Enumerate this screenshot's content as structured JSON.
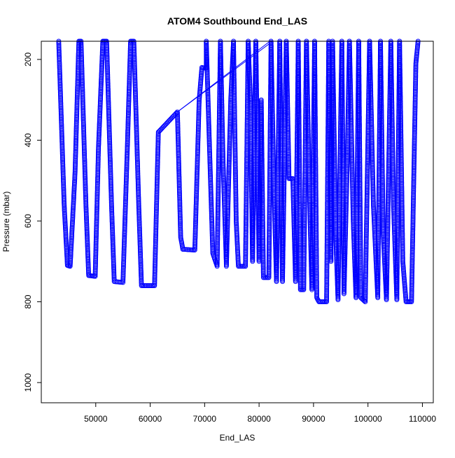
{
  "chart_data": {
    "type": "scatter",
    "title": "ATOM4 Southbound End_LAS",
    "xlabel": "End_LAS",
    "ylabel": "Pressure (mbar)",
    "xlim": [
      40000,
      112000
    ],
    "ylim": [
      1050,
      155
    ],
    "y_reversed": true,
    "grid": false,
    "marker": "open-circle",
    "colors": {
      "points": "#0000ff",
      "axes": "#000000",
      "background": "#ffffff"
    },
    "xticks": [
      50000,
      60000,
      70000,
      80000,
      90000,
      100000,
      110000
    ],
    "xtick_labels": [
      "50000",
      "60000",
      "70000",
      "80000",
      "90000",
      "100000",
      "110000"
    ],
    "yticks": [
      200,
      400,
      600,
      800,
      1000
    ],
    "ytick_labels": [
      "200",
      "400",
      "600",
      "800",
      "1000"
    ],
    "series": [
      {
        "trace": [
          [
            43200,
            155
          ],
          [
            44200,
            560
          ],
          [
            44800,
            710
          ],
          [
            45300,
            712
          ],
          [
            46200,
            480
          ],
          [
            46900,
            155
          ],
          [
            47300,
            155
          ],
          [
            48200,
            560
          ],
          [
            48700,
            735
          ],
          [
            49900,
            737
          ],
          [
            50500,
            420
          ],
          [
            51300,
            155
          ],
          [
            52000,
            155
          ],
          [
            52900,
            560
          ],
          [
            53400,
            750
          ],
          [
            55000,
            752
          ],
          [
            55800,
            420
          ],
          [
            56400,
            155
          ],
          [
            57000,
            155
          ],
          [
            57900,
            560
          ],
          [
            58400,
            760
          ],
          [
            60800,
            760
          ],
          [
            61500,
            380
          ],
          [
            65000,
            330
          ],
          [
            65600,
            640
          ],
          [
            66000,
            670
          ],
          [
            68200,
            672
          ],
          [
            69000,
            300
          ],
          [
            69500,
            220
          ],
          [
            70300,
            222
          ],
          [
            70300,
            155
          ],
          [
            70900,
            420
          ],
          [
            71500,
            680
          ],
          [
            72300,
            712
          ],
          [
            72900,
            155
          ],
          [
            73400,
            460
          ],
          [
            74000,
            712
          ],
          [
            74800,
            300
          ],
          [
            75300,
            155
          ],
          [
            75800,
            600
          ],
          [
            76200,
            712
          ],
          [
            77500,
            712
          ],
          [
            78000,
            155
          ],
          [
            78400,
            300
          ],
          [
            78800,
            700
          ],
          [
            79400,
            155
          ],
          [
            80000,
            700
          ],
          [
            80400,
            300
          ],
          [
            80800,
            740
          ],
          [
            81800,
            740
          ],
          [
            82200,
            155
          ],
          [
            82700,
            500
          ],
          [
            83200,
            750
          ],
          [
            83800,
            155
          ],
          [
            84300,
            750
          ],
          [
            85000,
            155
          ],
          [
            85500,
            495
          ],
          [
            86200,
            495
          ],
          [
            86700,
            750
          ],
          [
            87200,
            155
          ],
          [
            87600,
            770
          ],
          [
            88200,
            770
          ],
          [
            88700,
            155
          ],
          [
            89200,
            500
          ],
          [
            89700,
            770
          ],
          [
            90200,
            155
          ],
          [
            90600,
            790
          ],
          [
            91000,
            800
          ],
          [
            92400,
            800
          ],
          [
            92800,
            155
          ],
          [
            93200,
            700
          ],
          [
            93500,
            155
          ],
          [
            94100,
            640
          ],
          [
            94500,
            795
          ],
          [
            95200,
            155
          ],
          [
            95600,
            780
          ],
          [
            96200,
            450
          ],
          [
            96600,
            155
          ],
          [
            97300,
            600
          ],
          [
            97800,
            790
          ],
          [
            98300,
            155
          ],
          [
            98700,
            790
          ],
          [
            99500,
            800
          ],
          [
            100300,
            155
          ],
          [
            101000,
            560
          ],
          [
            101800,
            790
          ],
          [
            102300,
            155
          ],
          [
            102800,
            630
          ],
          [
            103400,
            795
          ],
          [
            104200,
            155
          ],
          [
            104700,
            560
          ],
          [
            105300,
            795
          ],
          [
            105800,
            155
          ],
          [
            106400,
            700
          ],
          [
            107000,
            800
          ],
          [
            108000,
            800
          ],
          [
            108800,
            210
          ],
          [
            109200,
            155
          ]
        ]
      }
    ],
    "connector_lines": [
      [
        [
          65000,
          330
        ],
        [
          82000,
          155
        ]
      ],
      [
        [
          65000,
          330
        ],
        [
          82500,
          155
        ]
      ]
    ]
  }
}
